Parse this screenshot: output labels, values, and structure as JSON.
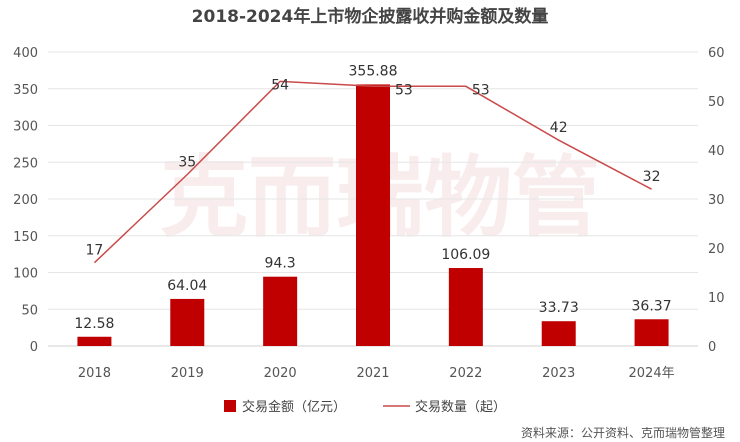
{
  "chart_data": {
    "type": "bar",
    "title": "2018-2024年上市物企披露收并购金额及数量",
    "categories": [
      "2018",
      "2019",
      "2020",
      "2021",
      "2022",
      "2023",
      "2024年"
    ],
    "series": [
      {
        "name": "交易金额（亿元）",
        "type": "bar",
        "axis": "left",
        "color": "#c00000",
        "values": [
          12.58,
          64.04,
          94.3,
          355.88,
          106.09,
          33.73,
          36.37
        ],
        "labels": [
          "12.58",
          "64.04",
          "94.3",
          "355.88",
          "106.09",
          "33.73",
          "36.37"
        ]
      },
      {
        "name": "交易数量（起）",
        "type": "line",
        "axis": "right",
        "color": "#c94a4a",
        "values": [
          17,
          35,
          54,
          53,
          53,
          42,
          32
        ],
        "labels": [
          "17",
          "35",
          "54",
          "53",
          "53",
          "42",
          "32"
        ]
      }
    ],
    "y_left": {
      "min": 0,
      "max": 400,
      "ticks": [
        0,
        50,
        100,
        150,
        200,
        250,
        300,
        350,
        400
      ]
    },
    "y_right": {
      "min": 0,
      "max": 60,
      "ticks": [
        0,
        10,
        20,
        30,
        40,
        50,
        60
      ]
    },
    "grid": true,
    "legend_position": "bottom"
  },
  "watermark": "克而瑞物管",
  "source": "资料来源：公开资料、克而瑞物管整理"
}
